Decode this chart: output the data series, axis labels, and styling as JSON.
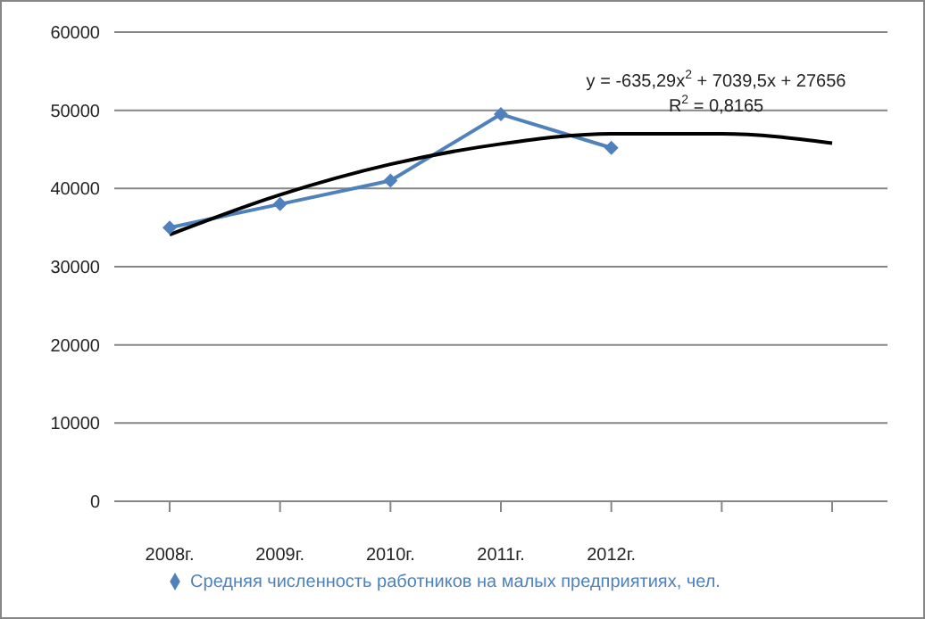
{
  "chart_data": {
    "type": "line",
    "categories": [
      "2008г.",
      "2009г.",
      "2010г.",
      "2011г.",
      "2012г.",
      null,
      null
    ],
    "series": [
      {
        "name": "Средняя численность работников на малых предприятиях, чел.",
        "color": "#4f81bd",
        "values": [
          35000,
          38000,
          41000,
          49500,
          45200,
          null,
          null
        ],
        "marker": "diamond"
      },
      {
        "color": "#000000",
        "values": [
          34100,
          39200,
          43100,
          45700,
          47000,
          47000,
          45800
        ],
        "marker": "none"
      }
    ],
    "ylim": [
      0,
      60000
    ],
    "yticks": [
      0,
      10000,
      20000,
      30000,
      40000,
      50000,
      60000
    ],
    "grid": "y",
    "legend": "bottom",
    "annotations": [
      "y = -635,29x$^{2}$ + 7039,5x + 27656",
      "R$^{2}$ = 0,8165"
    ]
  }
}
